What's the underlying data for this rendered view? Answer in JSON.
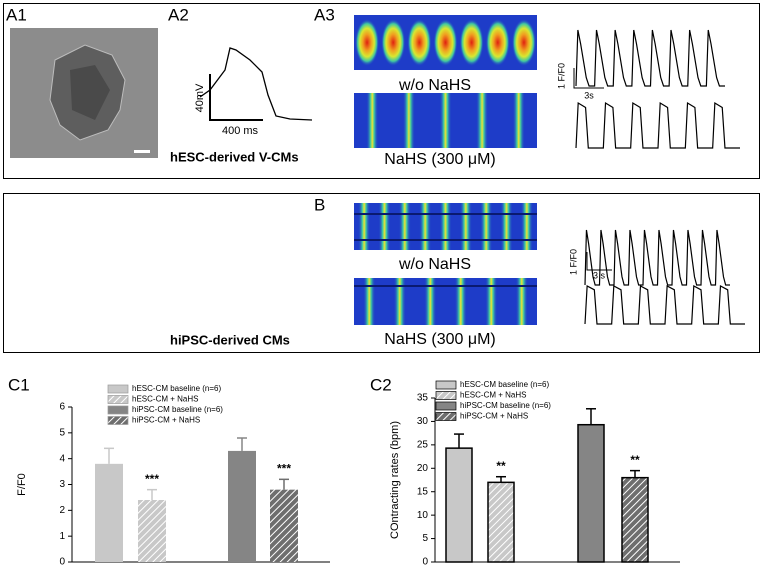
{
  "labels": {
    "a1": "A1",
    "a2": "A2",
    "a3": "A3",
    "b": "B",
    "c1": "C1",
    "c2": "C2"
  },
  "panel_a": {
    "cell_type": "hESC-derived V-CMs",
    "condition_1": "w/o NaHS",
    "condition_2": "NaHS (300 μM)",
    "voltage_scale": "40mV",
    "time_scale": "400 ms",
    "fluor_scale": "1 F/F0",
    "trace_time_scale": "3s"
  },
  "panel_b": {
    "cell_type": "hiPSC-derived CMs",
    "condition_1": "w/o NaHS",
    "condition_2": "NaHS (300 μM)",
    "fluor_scale": "1 F/F0",
    "trace_time_scale": "3 s"
  },
  "chart_data": [
    {
      "type": "bar",
      "y_label": "F/F0",
      "ylim": [
        0,
        6
      ],
      "yticks": [
        0,
        1,
        2,
        3,
        4,
        5,
        6
      ],
      "bar_outline": "none",
      "series": [
        {
          "name": "hESC-CM baseline (n=6)",
          "color": "#c8c8c8",
          "hatch": false,
          "values": [
            3.8
          ],
          "errors": [
            0.6
          ]
        },
        {
          "name": "hESC-CM + NaHS",
          "color": "#c8c8c8",
          "hatch": true,
          "values": [
            2.4
          ],
          "errors": [
            0.4
          ],
          "annotation": "***"
        },
        {
          "name": "hiPSC-CM baseline (n=6)",
          "color": "#858585",
          "hatch": false,
          "values": [
            4.3
          ],
          "errors": [
            0.5
          ]
        },
        {
          "name": "hiPSC-CM + NaHS",
          "color": "#6e6e6e",
          "hatch": true,
          "values": [
            2.8
          ],
          "errors": [
            0.4
          ],
          "annotation": "***"
        }
      ]
    },
    {
      "type": "bar",
      "y_label": "COntracting rates (bpm)",
      "ylim": [
        0,
        35
      ],
      "yticks": [
        0,
        5,
        10,
        15,
        20,
        25,
        30,
        35
      ],
      "bar_outline": "#000000",
      "series": [
        {
          "name": "hESC-CM baseline (n=6)",
          "color": "#c8c8c8",
          "hatch": false,
          "values": [
            24.3
          ],
          "errors": [
            3
          ]
        },
        {
          "name": "hESC-CM + NaHS",
          "color": "#c8c8c8",
          "hatch": true,
          "values": [
            17
          ],
          "errors": [
            1.2
          ],
          "annotation": "**"
        },
        {
          "name": "hiPSC-CM baseline (n=6)",
          "color": "#858585",
          "hatch": false,
          "values": [
            29.3
          ],
          "errors": [
            3.4
          ]
        },
        {
          "name": "hiPSC-CM + NaHS",
          "color": "#6e6e6e",
          "hatch": true,
          "values": [
            18
          ],
          "errors": [
            1.5
          ],
          "annotation": "**"
        }
      ]
    }
  ]
}
